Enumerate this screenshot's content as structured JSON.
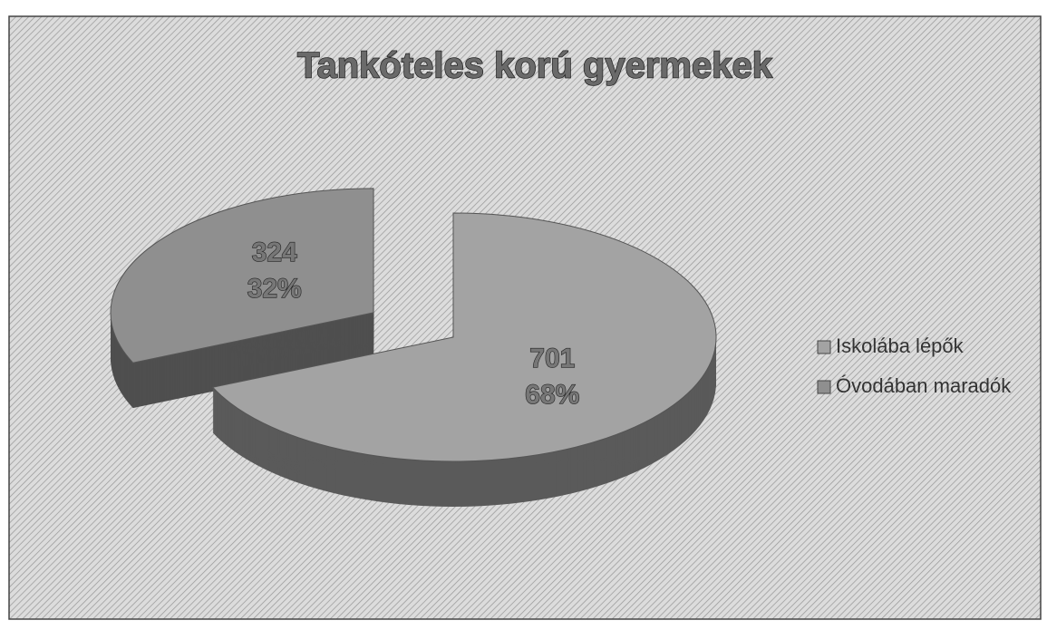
{
  "chart_data": {
    "type": "pie",
    "title": "Tankóteles korú gyermekek",
    "categories": [
      "Iskolába lépők",
      "Óvodában maradók"
    ],
    "values": [
      701,
      324
    ],
    "percents": [
      68,
      32
    ],
    "percent_labels": [
      "68%",
      "32%"
    ],
    "colors": [
      "#a3a3a3",
      "#8f8f8f"
    ],
    "exploded": [
      false,
      true
    ],
    "legend": "right"
  }
}
